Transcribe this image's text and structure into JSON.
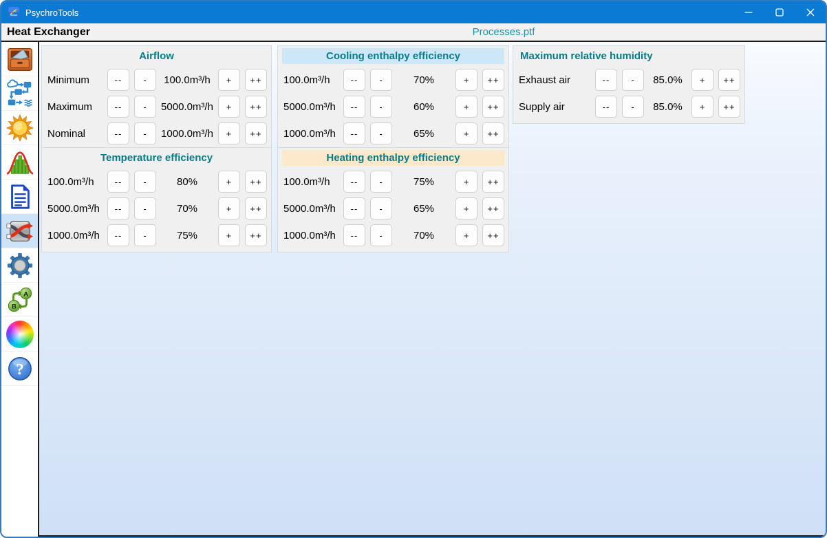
{
  "window": {
    "app_title": "PsychroTools",
    "controls": [
      {
        "icon": "minimize"
      },
      {
        "icon": "maximize"
      },
      {
        "icon": "close"
      }
    ]
  },
  "header": {
    "page_title": "Heat Exchanger",
    "file_label": "Processes.ptf"
  },
  "sidebar": {
    "items": [
      {
        "icon": "archive-drawer",
        "selected": false
      },
      {
        "icon": "process-flow",
        "selected": false
      },
      {
        "icon": "sun",
        "selected": false
      },
      {
        "icon": "distribution-chart",
        "selected": false
      },
      {
        "icon": "document",
        "selected": false
      },
      {
        "icon": "heat-exchanger",
        "selected": true
      },
      {
        "icon": "settings-gear",
        "selected": false
      },
      {
        "icon": "ab-cycle",
        "selected": false
      },
      {
        "icon": "color-wheel",
        "selected": false
      },
      {
        "icon": "help",
        "selected": false
      }
    ]
  },
  "stepper_buttons": {
    "decrement_large": "--",
    "decrement": "-",
    "increment": "+",
    "increment_large": "++"
  },
  "panels": [
    {
      "id": "airflow",
      "title": "Airflow",
      "title_align": "center",
      "title_bg": null,
      "rows": [
        {
          "label": "Minimum",
          "value": "100.0m³/h"
        },
        {
          "label": "Maximum",
          "value": "5000.0m³/h"
        },
        {
          "label": "Nominal",
          "value": "1000.0m³/h"
        }
      ]
    },
    {
      "id": "cooling-enthalpy-efficiency",
      "title": "Cooling enthalpy efficiency",
      "title_align": "center",
      "title_bg": "#cde7f8",
      "rows": [
        {
          "label": "100.0m³/h",
          "value": "70%"
        },
        {
          "label": "5000.0m³/h",
          "value": "60%"
        },
        {
          "label": "1000.0m³/h",
          "value": "65%"
        }
      ]
    },
    {
      "id": "maximum-relative-humidity",
      "title": "Maximum relative humidity",
      "title_align": "left",
      "title_bg": null,
      "rows": [
        {
          "label": "Exhaust air",
          "value": "85.0%"
        },
        {
          "label": "Supply air",
          "value": "85.0%"
        }
      ]
    },
    {
      "id": "temperature-efficiency",
      "title": "Temperature efficiency",
      "title_align": "center",
      "title_bg": null,
      "rows": [
        {
          "label": "100.0m³/h",
          "value": "80%"
        },
        {
          "label": "5000.0m³/h",
          "value": "70%"
        },
        {
          "label": "1000.0m³/h",
          "value": "75%"
        }
      ]
    },
    {
      "id": "heating-enthalpy-efficiency",
      "title": "Heating enthalpy efficiency",
      "title_align": "center",
      "title_bg": "#fce8cb",
      "rows": [
        {
          "label": "100.0m³/h",
          "value": "75%"
        },
        {
          "label": "5000.0m³/h",
          "value": "65%"
        },
        {
          "label": "1000.0m³/h",
          "value": "70%"
        }
      ]
    }
  ],
  "colors": {
    "titlebar": "#0a7ad4",
    "accent_teal": "#077c86",
    "file_label_teal": "#1993a4",
    "cooling_highlight": "#cde7f8",
    "heating_highlight": "#fce8cb",
    "selected_sidebar": "#cde4f8",
    "panel_background": "#f0f0f0"
  }
}
